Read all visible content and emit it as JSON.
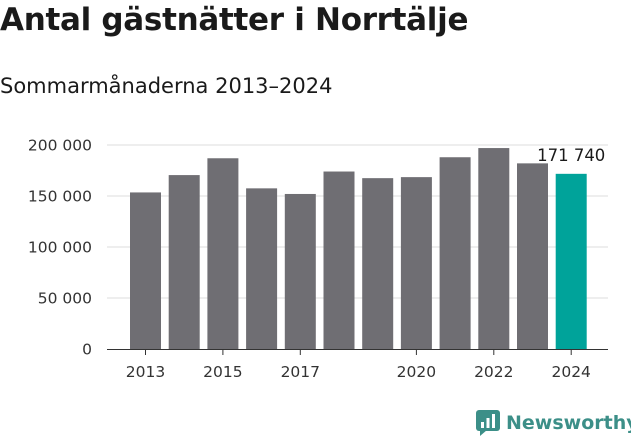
{
  "header": {
    "title": "Antal gästnätter i Norrtälje",
    "subtitle": "Sommarmånaderna 2013–2024"
  },
  "brand": {
    "name": "Newsworthy",
    "color": "#3c8f88"
  },
  "chart_data": {
    "type": "bar",
    "title": "Antal gästnätter i Norrtälje",
    "subtitle": "Sommarmånaderna 2013–2024",
    "xlabel": "",
    "ylabel": "",
    "categories": [
      "2013",
      "2014",
      "2015",
      "2016",
      "2017",
      "2018",
      "2019",
      "2020",
      "2021",
      "2022",
      "2023",
      "2024"
    ],
    "values": [
      153500,
      170500,
      187000,
      157500,
      152000,
      174000,
      167500,
      168500,
      188000,
      197000,
      182000,
      171740
    ],
    "x_tick_labels": [
      "2013",
      "2015",
      "2017",
      "2020",
      "2022",
      "2024"
    ],
    "y_ticks": [
      0,
      50000,
      100000,
      150000,
      200000
    ],
    "y_tick_labels": [
      "0",
      "50 000",
      "100 000",
      "150 000",
      "200 000"
    ],
    "ylim": [
      0,
      200000
    ],
    "grid": true,
    "highlight": {
      "category": "2024",
      "label": "171 740"
    },
    "colors": {
      "bar": "#6f6e73",
      "highlight": "#00a39a",
      "grid": "#dddddd",
      "axis": "#333333"
    }
  }
}
